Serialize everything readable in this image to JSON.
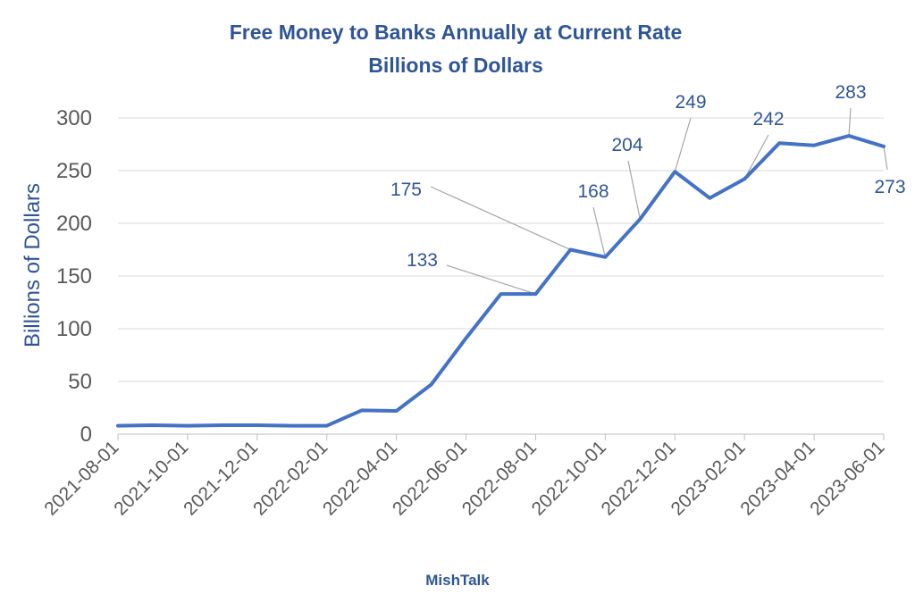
{
  "chart_data": {
    "type": "line",
    "title": "Free Money to Banks Annually at Current Rate",
    "subtitle": "Billions of Dollars",
    "ylabel": "Billions of Dollars",
    "xlabel": "",
    "ylim": [
      0,
      300
    ],
    "yticks": [
      0,
      50,
      100,
      150,
      200,
      250,
      300
    ],
    "grid": true,
    "legend": "none",
    "source": "MishTalk",
    "colors": {
      "line": "#4472C4",
      "title": "#2F5597",
      "label": "#2F5597",
      "tick": "#595959",
      "grid": "#D9D9D9",
      "leader": "#A6A6A6"
    },
    "x_tick_labels": [
      "2021-08-01",
      "2021-10-01",
      "2021-12-01",
      "2022-02-01",
      "2022-04-01",
      "2022-06-01",
      "2022-08-01",
      "2022-10-01",
      "2022-12-01",
      "2023-02-01",
      "2023-04-01",
      "2023-06-01"
    ],
    "x": [
      "2021-08-01",
      "2021-09-01",
      "2021-10-01",
      "2021-11-01",
      "2021-12-01",
      "2022-01-01",
      "2022-02-01",
      "2022-03-01",
      "2022-04-01",
      "2022-05-01",
      "2022-06-01",
      "2022-07-01",
      "2022-08-01",
      "2022-09-01",
      "2022-10-01",
      "2022-11-01",
      "2022-12-01",
      "2023-01-01",
      "2023-02-01",
      "2023-03-01",
      "2023-04-01",
      "2023-05-01",
      "2023-06-01"
    ],
    "values": [
      8,
      8.5,
      8,
      8.5,
      8.5,
      8,
      8,
      22.5,
      22,
      47,
      91,
      133,
      133,
      175,
      168,
      204,
      249,
      224,
      242,
      276,
      274,
      283,
      273
    ],
    "annotations": [
      {
        "x": "2022-08-01",
        "label": "133"
      },
      {
        "x": "2022-09-01",
        "label": "175"
      },
      {
        "x": "2022-10-01",
        "label": "168"
      },
      {
        "x": "2022-11-01",
        "label": "204"
      },
      {
        "x": "2022-12-01",
        "label": "249"
      },
      {
        "x": "2023-02-01",
        "label": "242"
      },
      {
        "x": "2023-05-01",
        "label": "283"
      },
      {
        "x": "2023-06-01",
        "label": "273"
      }
    ]
  }
}
